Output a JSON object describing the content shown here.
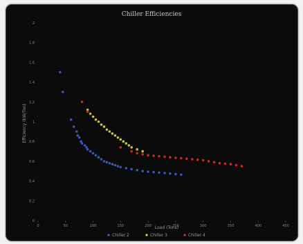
{
  "chart_data": {
    "type": "scatter",
    "title": "Chiller Efficiencies",
    "xlabel": "Load (Tons)",
    "ylabel": "Efficiency (kW/Ton)",
    "x_ticks": [
      "0",
      "50",
      "100",
      "150",
      "200",
      "250",
      "300",
      "350",
      "400",
      "450"
    ],
    "y_ticks": [
      "0",
      "0.2",
      "0.4",
      "0.6",
      "0.8",
      "1",
      "1.2",
      "1.4",
      "1.6",
      "1.8",
      "2"
    ],
    "xlim": [
      0,
      450
    ],
    "ylim": [
      0,
      2
    ],
    "grid": false,
    "legend_position": "bottom-center",
    "background": "#0b0b0b",
    "series": [
      {
        "name": "Chiller 2",
        "color": "#3f62d8",
        "points": [
          [
            60,
            1.02
          ],
          [
            65,
            0.95
          ],
          [
            70,
            0.9
          ],
          [
            72,
            0.86
          ],
          [
            75,
            0.84
          ],
          [
            78,
            0.8
          ],
          [
            80,
            0.78
          ],
          [
            85,
            0.76
          ],
          [
            88,
            0.74
          ],
          [
            90,
            0.72
          ],
          [
            95,
            0.7
          ],
          [
            100,
            0.68
          ],
          [
            105,
            0.66
          ],
          [
            110,
            0.64
          ],
          [
            115,
            0.62
          ],
          [
            120,
            0.6
          ],
          [
            125,
            0.59
          ],
          [
            130,
            0.58
          ],
          [
            135,
            0.57
          ],
          [
            140,
            0.56
          ],
          [
            145,
            0.55
          ],
          [
            150,
            0.54
          ],
          [
            160,
            0.53
          ],
          [
            170,
            0.52
          ],
          [
            180,
            0.51
          ],
          [
            190,
            0.5
          ],
          [
            200,
            0.495
          ],
          [
            210,
            0.49
          ],
          [
            220,
            0.485
          ],
          [
            230,
            0.48
          ],
          [
            240,
            0.475
          ],
          [
            250,
            0.47
          ],
          [
            260,
            0.465
          ],
          [
            40,
            1.5
          ],
          [
            45,
            1.3
          ]
        ]
      },
      {
        "name": "Chiller 3",
        "color": "#e8e03a",
        "points": [
          [
            90,
            1.12
          ],
          [
            95,
            1.08
          ],
          [
            100,
            1.05
          ],
          [
            105,
            1.02
          ],
          [
            110,
            1.0
          ],
          [
            115,
            0.97
          ],
          [
            120,
            0.95
          ],
          [
            125,
            0.92
          ],
          [
            130,
            0.9
          ],
          [
            135,
            0.88
          ],
          [
            140,
            0.86
          ],
          [
            145,
            0.84
          ],
          [
            150,
            0.82
          ],
          [
            155,
            0.8
          ],
          [
            160,
            0.78
          ],
          [
            165,
            0.76
          ],
          [
            170,
            0.74
          ],
          [
            180,
            0.72
          ],
          [
            190,
            0.7
          ]
        ]
      },
      {
        "name": "Chiller 4",
        "color": "#e43128",
        "points": [
          [
            80,
            1.2
          ],
          [
            90,
            1.1
          ],
          [
            150,
            0.74
          ],
          [
            170,
            0.7
          ],
          [
            180,
            0.68
          ],
          [
            190,
            0.67
          ],
          [
            200,
            0.66
          ],
          [
            210,
            0.655
          ],
          [
            220,
            0.65
          ],
          [
            230,
            0.645
          ],
          [
            240,
            0.64
          ],
          [
            250,
            0.635
          ],
          [
            260,
            0.63
          ],
          [
            270,
            0.625
          ],
          [
            280,
            0.62
          ],
          [
            290,
            0.615
          ],
          [
            300,
            0.61
          ],
          [
            310,
            0.6
          ],
          [
            320,
            0.59
          ],
          [
            330,
            0.58
          ],
          [
            340,
            0.575
          ],
          [
            350,
            0.57
          ],
          [
            360,
            0.56
          ],
          [
            370,
            0.55
          ]
        ]
      }
    ]
  }
}
